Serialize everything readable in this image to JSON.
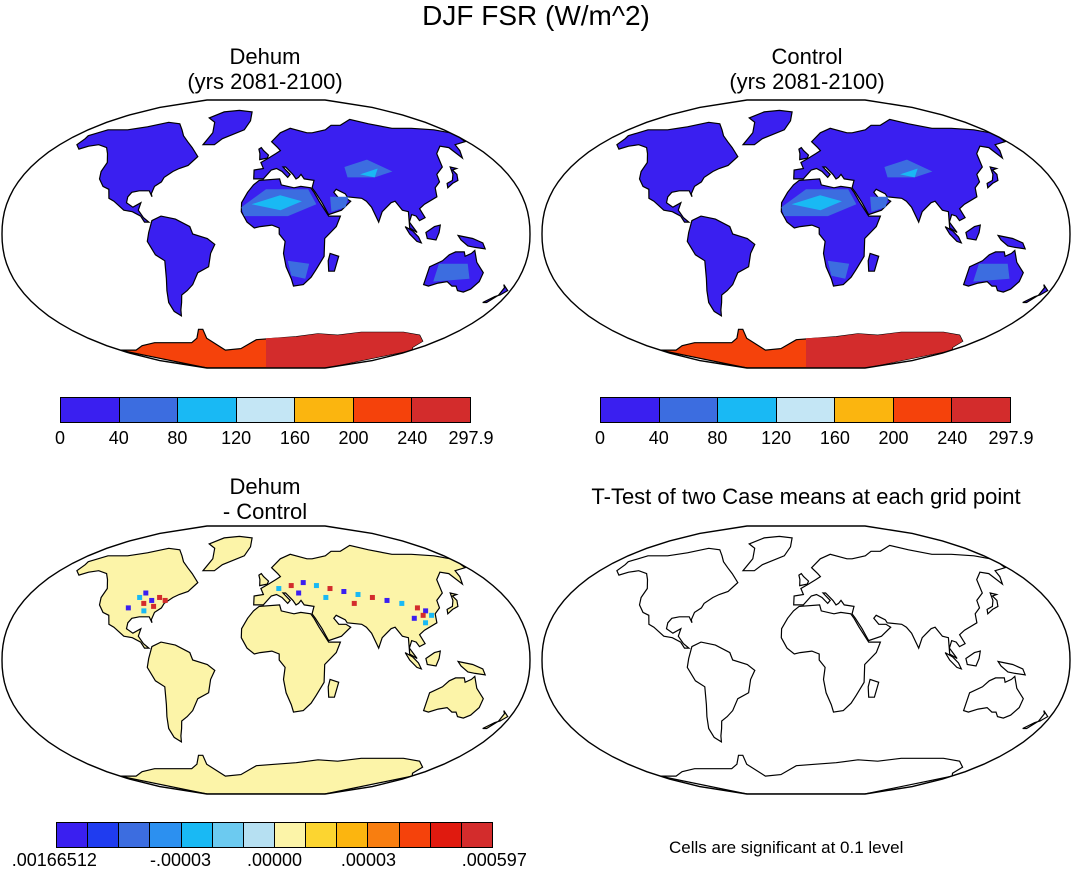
{
  "title": "DJF FSR (W/m^2)",
  "panels": [
    {
      "title_line1": "Dehum",
      "title_line2": "(yrs 2081-2100)"
    },
    {
      "title_line1": "Control",
      "title_line2": "(yrs 2081-2100)"
    },
    {
      "title_line1": "Dehum",
      "title_line2": "- Control"
    },
    {
      "title_line1": "T-Test of two Case means at each grid point",
      "title_line2": ""
    }
  ],
  "colorbar_main": {
    "colors": [
      "#3a1ff0",
      "#3c6de0",
      "#19b9f4",
      "#c4e6f5",
      "#fbb50f",
      "#f5420b",
      "#d32c2c"
    ],
    "labels": [
      "0",
      "40",
      "80",
      "120",
      "160",
      "200",
      "240",
      "297.9"
    ]
  },
  "colorbar_diff": {
    "colors": [
      "#3a1ff0",
      "#1f3cf0",
      "#3c6de0",
      "#2c90f0",
      "#19b9f4",
      "#6ccaf0",
      "#b6e0f2",
      "#fcf4a8",
      "#fcd530",
      "#fcb50f",
      "#f87e10",
      "#f5420b",
      "#e01a0f",
      "#d32c2c"
    ],
    "labels": [
      ".00166512",
      "-.00003",
      ".00000",
      ".00003",
      ".000597"
    ]
  },
  "significance_note": "Cells are significant at 0.1 level",
  "map_colors": {
    "ocean": "#ffffff",
    "land_main": "#3a1ff0",
    "land_desert": "#3c6de0",
    "land_bright": "#19b9f4",
    "antarctica": "#f5420b",
    "antarctica_east": "#d32c2c",
    "diff_land": "#fcf4a8",
    "diff_speckle_pos": "#d32c2c",
    "diff_speckle_neg": "#3a1ff0",
    "coast": "#000000"
  }
}
